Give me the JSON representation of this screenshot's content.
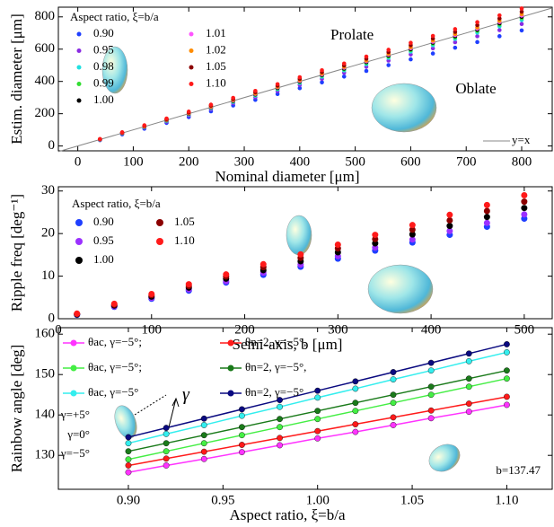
{
  "chart_data": [
    {
      "type": "scatter",
      "xlabel": "Nominal diameter [μm]",
      "ylabel": "Estim. diameter [μm]",
      "xlim": [
        -35,
        855
      ],
      "ylim": [
        -30,
        860
      ],
      "xticks": [
        0,
        100,
        200,
        300,
        400,
        500,
        600,
        700,
        800
      ],
      "yticks": [
        0,
        200,
        400,
        600,
        800
      ],
      "legend": "upper left",
      "legend_title": "Aspect ratio, ξ=b/a",
      "reference_line": {
        "label": "y=x",
        "color": "#888888"
      },
      "annotations": [
        "Prolate",
        "Oblate"
      ],
      "x": [
        40,
        80,
        120,
        160,
        200,
        240,
        280,
        320,
        360,
        400,
        440,
        480,
        520,
        560,
        600,
        640,
        680,
        720,
        760,
        800
      ],
      "series": [
        {
          "name": "0.90",
          "color": "#1f3fff",
          "values": [
            36,
            72,
            107,
            143,
            179,
            215,
            251,
            286,
            322,
            358,
            394,
            430,
            465,
            501,
            537,
            573,
            609,
            644,
            680,
            716
          ]
        },
        {
          "name": "0.95",
          "color": "#8a2be2",
          "values": [
            38,
            76,
            113,
            151,
            189,
            227,
            265,
            302,
            340,
            378,
            416,
            454,
            491,
            529,
            567,
            605,
            643,
            680,
            718,
            756
          ]
        },
        {
          "name": "0.98",
          "color": "#20e0e0",
          "values": [
            39,
            78,
            117,
            156,
            195,
            234,
            273,
            312,
            351,
            390,
            429,
            468,
            507,
            546,
            585,
            624,
            663,
            702,
            741,
            780
          ]
        },
        {
          "name": "0.99",
          "color": "#33dd33",
          "values": [
            40,
            79,
            119,
            158,
            198,
            238,
            277,
            317,
            356,
            396,
            436,
            475,
            515,
            554,
            594,
            634,
            673,
            713,
            752,
            792
          ]
        },
        {
          "name": "1.00",
          "color": "#000000",
          "values": [
            40,
            80,
            120,
            160,
            200,
            240,
            280,
            320,
            360,
            400,
            440,
            480,
            520,
            560,
            600,
            640,
            680,
            720,
            760,
            800
          ]
        },
        {
          "name": "1.01",
          "color": "#ff55ff",
          "values": [
            40,
            81,
            121,
            162,
            202,
            242,
            283,
            323,
            364,
            404,
            444,
            485,
            525,
            566,
            606,
            646,
            687,
            727,
            768,
            808
          ]
        },
        {
          "name": "1.02",
          "color": "#ff8c00",
          "values": [
            41,
            82,
            122,
            163,
            204,
            245,
            286,
            326,
            367,
            408,
            449,
            490,
            530,
            571,
            612,
            653,
            694,
            734,
            775,
            816
          ]
        },
        {
          "name": "1.05",
          "color": "#8b0000",
          "values": [
            42,
            83,
            125,
            166,
            208,
            250,
            291,
            333,
            374,
            416,
            458,
            499,
            541,
            582,
            624,
            666,
            707,
            749,
            790,
            832
          ]
        },
        {
          "name": "1.10",
          "color": "#ff1a1a",
          "values": [
            43,
            85,
            128,
            170,
            213,
            256,
            298,
            341,
            383,
            426,
            469,
            511,
            554,
            596,
            639,
            682,
            724,
            767,
            809,
            852
          ]
        }
      ]
    },
    {
      "type": "scatter",
      "xlabel": "Semi-axis, b [μm]",
      "ylabel": "Ripple freq [deg⁻¹]",
      "xlim": [
        0,
        530
      ],
      "ylim": [
        0,
        31
      ],
      "xticks": [
        0,
        100,
        200,
        300,
        400,
        500
      ],
      "yticks": [
        0,
        10,
        20,
        30
      ],
      "legend": "upper left",
      "legend_title": "Aspect ratio,  ξ=b/a",
      "x": [
        20,
        60,
        100,
        140,
        180,
        220,
        260,
        300,
        340,
        380,
        420,
        460,
        500
      ],
      "series": [
        {
          "name": "0.90",
          "color": "#1f3fff",
          "values": [
            0.9,
            2.8,
            4.7,
            6.6,
            8.5,
            10.3,
            12.2,
            14.1,
            16.0,
            17.9,
            19.7,
            21.6,
            23.5
          ]
        },
        {
          "name": "0.95",
          "color": "#9b30ff",
          "values": [
            1.0,
            2.9,
            4.9,
            6.9,
            8.8,
            10.8,
            12.7,
            14.7,
            16.7,
            18.6,
            20.6,
            22.5,
            24.5
          ]
        },
        {
          "name": "1.00",
          "color": "#000000",
          "values": [
            1.0,
            3.1,
            5.2,
            7.3,
            9.4,
            11.4,
            13.5,
            15.6,
            17.7,
            19.8,
            21.8,
            23.9,
            26.0
          ]
        },
        {
          "name": "1.05",
          "color": "#8b0000",
          "values": [
            1.1,
            3.3,
            5.5,
            7.7,
            9.9,
            12.1,
            14.3,
            16.5,
            18.7,
            20.9,
            23.1,
            25.3,
            27.5
          ]
        },
        {
          "name": "1.10",
          "color": "#ff1a1a",
          "values": [
            1.2,
            3.5,
            5.8,
            8.1,
            10.4,
            12.8,
            15.1,
            17.4,
            19.7,
            22.0,
            24.4,
            26.7,
            29.0
          ]
        }
      ]
    },
    {
      "type": "line",
      "xlabel": "Aspect ratio, ξ=b/a",
      "ylabel": "Rainbow angle [deg]",
      "xlim": [
        0.863,
        1.124
      ],
      "ylim": [
        121.6,
        161.6
      ],
      "xticks": [
        {
          "value": 0.9,
          "label": "0.90"
        },
        {
          "value": 0.95,
          "label": "0.95"
        },
        {
          "value": 1.0,
          "label": "1.00"
        },
        {
          "value": 1.05,
          "label": "1.05"
        },
        {
          "value": 1.1,
          "label": "1.10"
        }
      ],
      "yticks": [
        130,
        140,
        150,
        160
      ],
      "legend": "upper left",
      "annotations": [
        "γ=+5°",
        "γ=0°",
        "γ=−5°",
        "γ",
        "b=137.47"
      ],
      "x": [
        0.9,
        0.92,
        0.94,
        0.96,
        0.98,
        1.0,
        1.02,
        1.04,
        1.06,
        1.08,
        1.1
      ],
      "series": [
        {
          "name": "θac, γ=−5°;",
          "color": "#ff33ff",
          "values": [
            125.8,
            127.5,
            129.1,
            130.8,
            132.5,
            134.2,
            135.8,
            137.5,
            139.2,
            140.8,
            142.5
          ]
        },
        {
          "name": "θac, γ=−5°;",
          "color": "#44ee44",
          "values": [
            129,
            131,
            133,
            135,
            137,
            139,
            141,
            143,
            145,
            147,
            149
          ]
        },
        {
          "name": "θac, γ=−5°",
          "color": "#33eeee",
          "values": [
            133.0,
            135.3,
            137.5,
            139.8,
            142.0,
            144.3,
            146.5,
            148.8,
            151.0,
            153.3,
            155.5
          ]
        },
        {
          "name": "θn=2, γ=−5°,",
          "color": "#ff1a1a",
          "values": [
            127.5,
            129.2,
            130.9,
            132.6,
            134.3,
            136.0,
            137.7,
            139.4,
            141.1,
            142.8,
            144.5
          ]
        },
        {
          "name": "θn=2, γ=−5°,",
          "color": "#1a7a1a",
          "values": [
            131,
            133,
            135,
            137,
            139,
            141,
            143,
            145,
            147,
            149,
            151
          ]
        },
        {
          "name": "θn=2, γ=−5°",
          "color": "#0a0a80",
          "values": [
            134.5,
            136.8,
            139.1,
            141.4,
            143.7,
            146.0,
            148.3,
            150.6,
            152.9,
            155.2,
            157.5
          ]
        }
      ]
    }
  ]
}
